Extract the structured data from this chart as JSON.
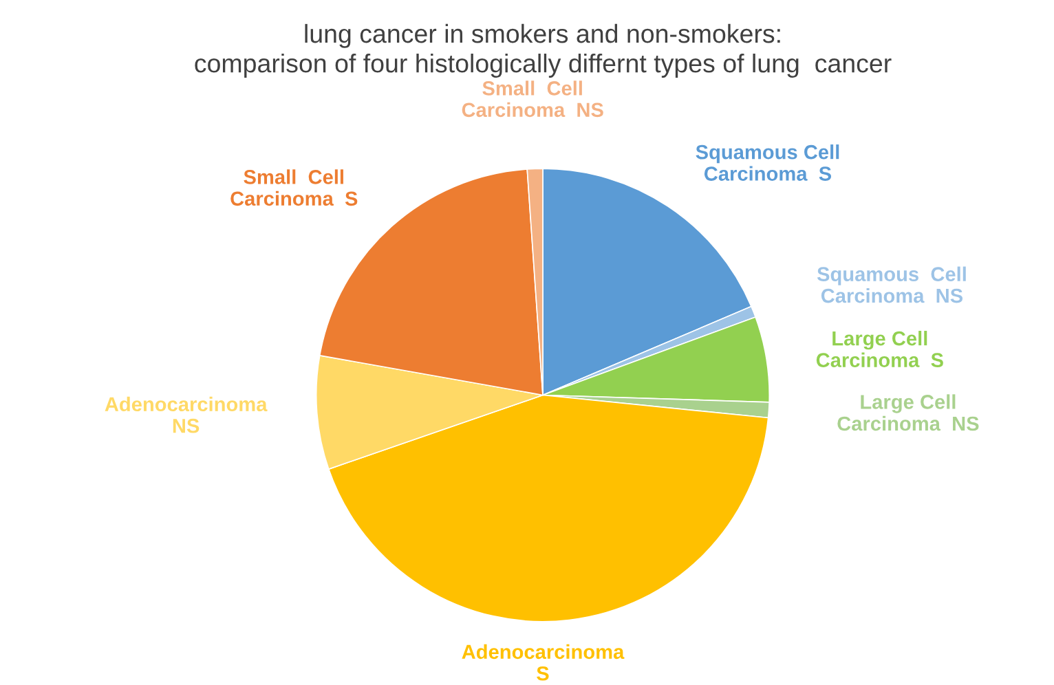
{
  "chart_data": {
    "type": "pie",
    "title": "lung cancer in smokers and non-smokers:\ncomparison of four histologically differnt types of lung  cancer",
    "categories": [
      "Squamous Cell\nCarcinoma  S",
      "Squamous  Cell\nCarcinoma  NS",
      "Large Cell\nCarcinoma  S",
      "Large Cell\nCarcinoma  NS",
      "Adenocarcinoma\nS",
      "Adenocarcinoma\nNS",
      "Small  Cell\nCarcinoma  S",
      "Small  Cell\nCarcinoma  NS"
    ],
    "values": [
      18.6,
      0.8,
      6.1,
      1.1,
      43.1,
      8.1,
      21.1,
      1.1
    ],
    "colors": [
      "#5b9bd5",
      "#9dc3e6",
      "#92d050",
      "#a9d18e",
      "#ffc000",
      "#ffd966",
      "#ed7d31",
      "#f4b183"
    ],
    "legend": false
  }
}
